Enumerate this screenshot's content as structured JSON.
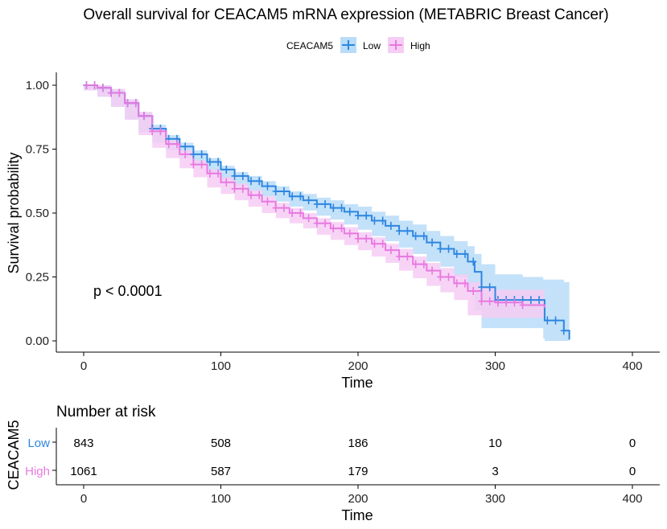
{
  "chart_data": {
    "type": "line",
    "title": "Overall survival for CEACAM5 mRNA expression (METABRIC Breast Cancer)",
    "xlabel": "Time",
    "ylabel": "Survival probability",
    "xlim": [
      0,
      400
    ],
    "ylim": [
      0,
      1
    ],
    "x_ticks": [
      0,
      100,
      200,
      300,
      400
    ],
    "y_ticks": [
      0.0,
      0.25,
      0.5,
      0.75,
      1.0
    ],
    "y_tick_labels": [
      "0.00",
      "0.25",
      "0.50",
      "0.75",
      "1.00"
    ],
    "grid": false,
    "legend": {
      "title": "CEACAM5",
      "position": "top",
      "entries": [
        "Low",
        "High"
      ]
    },
    "annotation": "p < 0.0001",
    "colors": {
      "Low": "#2e86e0",
      "High": "#e879e0",
      "Low_band": "#b9dcf8",
      "High_band": "#f6cdf4"
    },
    "series": [
      {
        "name": "Low",
        "color": "#2e86e0",
        "x": [
          0,
          10,
          20,
          30,
          40,
          50,
          60,
          70,
          80,
          90,
          100,
          110,
          120,
          130,
          140,
          150,
          160,
          170,
          180,
          190,
          200,
          210,
          220,
          230,
          240,
          250,
          260,
          270,
          280,
          285,
          290,
          300,
          320,
          335,
          336,
          350,
          354
        ],
        "y": [
          1.0,
          0.99,
          0.97,
          0.93,
          0.88,
          0.83,
          0.79,
          0.76,
          0.73,
          0.7,
          0.67,
          0.645,
          0.625,
          0.605,
          0.585,
          0.565,
          0.55,
          0.535,
          0.52,
          0.505,
          0.49,
          0.47,
          0.45,
          0.43,
          0.41,
          0.385,
          0.36,
          0.34,
          0.31,
          0.27,
          0.21,
          0.16,
          0.16,
          0.16,
          0.08,
          0.04,
          0.005
        ],
        "lower": [
          1.0,
          0.98,
          0.955,
          0.915,
          0.865,
          0.815,
          0.775,
          0.745,
          0.715,
          0.685,
          0.655,
          0.63,
          0.605,
          0.585,
          0.565,
          0.545,
          0.525,
          0.51,
          0.49,
          0.475,
          0.455,
          0.435,
          0.41,
          0.39,
          0.365,
          0.34,
          0.31,
          0.29,
          0.25,
          0.2,
          0.12,
          0.05,
          0.05,
          0.05,
          0.01,
          0.0,
          0.0
        ],
        "upper": [
          1.0,
          1.0,
          0.985,
          0.945,
          0.895,
          0.845,
          0.805,
          0.775,
          0.745,
          0.715,
          0.685,
          0.66,
          0.645,
          0.625,
          0.605,
          0.585,
          0.575,
          0.56,
          0.55,
          0.535,
          0.525,
          0.505,
          0.49,
          0.47,
          0.455,
          0.43,
          0.41,
          0.39,
          0.37,
          0.34,
          0.3,
          0.26,
          0.25,
          0.24,
          0.24,
          0.23,
          0.23
        ]
      },
      {
        "name": "High",
        "color": "#e879e0",
        "x": [
          0,
          10,
          20,
          30,
          40,
          50,
          60,
          70,
          80,
          90,
          100,
          110,
          120,
          130,
          140,
          150,
          160,
          170,
          180,
          190,
          200,
          210,
          220,
          230,
          240,
          250,
          260,
          270,
          280,
          290,
          300,
          320,
          336
        ],
        "y": [
          1.0,
          0.99,
          0.97,
          0.93,
          0.88,
          0.82,
          0.77,
          0.73,
          0.69,
          0.655,
          0.62,
          0.595,
          0.57,
          0.545,
          0.52,
          0.5,
          0.48,
          0.46,
          0.44,
          0.42,
          0.4,
          0.38,
          0.355,
          0.33,
          0.3,
          0.275,
          0.25,
          0.225,
          0.195,
          0.155,
          0.15,
          0.14,
          0.13
        ],
        "lower": [
          1.0,
          0.98,
          0.955,
          0.915,
          0.865,
          0.805,
          0.755,
          0.715,
          0.675,
          0.64,
          0.6,
          0.575,
          0.55,
          0.525,
          0.5,
          0.48,
          0.46,
          0.44,
          0.415,
          0.395,
          0.375,
          0.355,
          0.33,
          0.305,
          0.275,
          0.245,
          0.215,
          0.19,
          0.16,
          0.1,
          0.09,
          0.09,
          0.09
        ],
        "upper": [
          1.0,
          1.0,
          0.985,
          0.945,
          0.895,
          0.835,
          0.785,
          0.745,
          0.705,
          0.67,
          0.64,
          0.615,
          0.59,
          0.565,
          0.54,
          0.52,
          0.5,
          0.48,
          0.465,
          0.445,
          0.425,
          0.405,
          0.38,
          0.36,
          0.33,
          0.305,
          0.285,
          0.26,
          0.23,
          0.21,
          0.2,
          0.2,
          0.2
        ]
      }
    ],
    "risk_table": {
      "title": "Number at risk",
      "ylabel": "CEACAM5",
      "xlabel": "Time",
      "x_ticks": [
        0,
        100,
        200,
        300,
        400
      ],
      "rows": [
        {
          "label": "Low",
          "color": "#2e86e0",
          "values": [
            "843",
            "508",
            "186",
            "10",
            "0"
          ]
        },
        {
          "label": "High",
          "color": "#e879e0",
          "values": [
            "1061",
            "587",
            "179",
            "3",
            "0"
          ]
        }
      ]
    }
  }
}
